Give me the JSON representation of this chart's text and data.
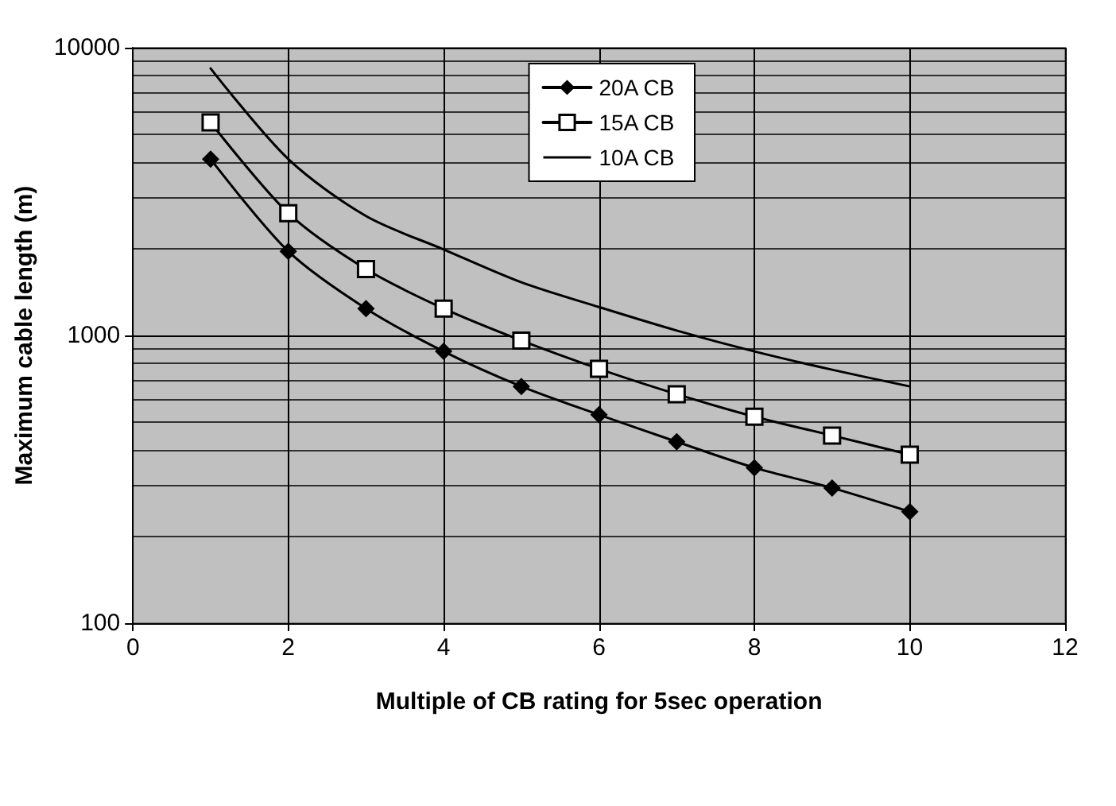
{
  "chart_data": {
    "type": "line",
    "xlabel": "Multiple of CB rating for 5sec operation",
    "ylabel": "Maximum cable length (m)",
    "x": [
      1,
      2,
      3,
      4,
      5,
      6,
      7,
      8,
      9,
      10
    ],
    "log": "y",
    "xlim": [
      0,
      12
    ],
    "xticks": [
      0,
      2,
      4,
      6,
      8,
      10,
      12
    ],
    "ylim": [
      100,
      10000
    ],
    "yticks": [
      100,
      1000,
      10000
    ],
    "grid": true,
    "legend": "top right",
    "series": [
      {
        "name": "20A CB",
        "color": "#000000",
        "marker": "diamond",
        "values": [
          4100,
          1960,
          1240,
          880,
          665,
          530,
          427,
          347,
          295,
          244
        ]
      },
      {
        "name": "15A CB",
        "color": "#000000",
        "marker": "square",
        "values": [
          5500,
          2660,
          1700,
          1240,
          960,
          765,
          625,
          522,
          449,
          385
        ]
      },
      {
        "name": "10A CB",
        "color": "#000000",
        "marker": "none",
        "values": [
          8470,
          4100,
          2600,
          1990,
          1530,
          1255,
          1040,
          880,
          760,
          665
        ]
      }
    ]
  }
}
